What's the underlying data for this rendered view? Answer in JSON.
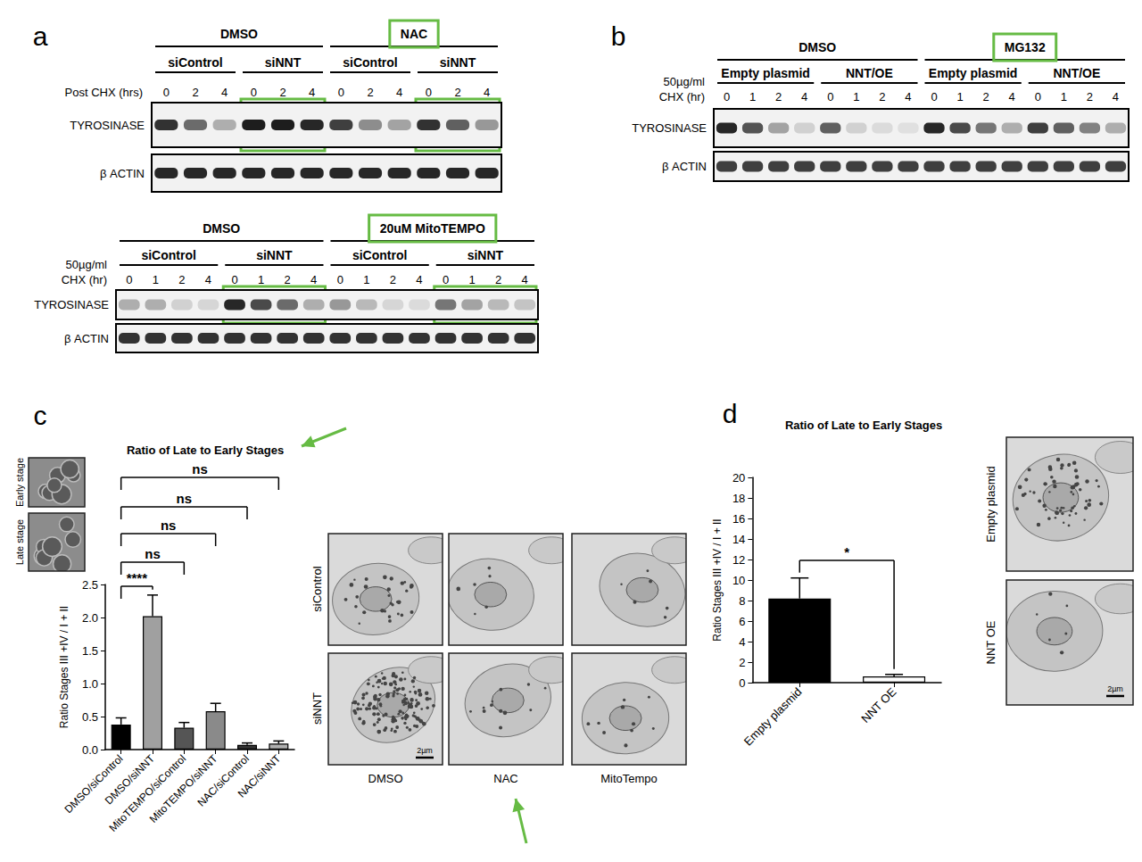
{
  "panels": [
    {
      "label": "a",
      "blots": [
        {
          "time_label": [
            "Post CHX (hrs)"
          ],
          "groups": [
            {
              "label": "DMSO",
              "highlight": false,
              "conditions": [
                {
                  "label": "siControl",
                  "highlight": false,
                  "times": [
                    0,
                    2,
                    4
                  ]
                },
                {
                  "label": "siNNT",
                  "highlight": true,
                  "times": [
                    0,
                    2,
                    4
                  ]
                }
              ]
            },
            {
              "label": "NAC",
              "highlight": true,
              "conditions": [
                {
                  "label": "siControl",
                  "highlight": false,
                  "times": [
                    0,
                    2,
                    4
                  ]
                },
                {
                  "label": "siNNT",
                  "highlight": true,
                  "times": [
                    0,
                    2,
                    4
                  ]
                }
              ]
            }
          ],
          "rows": [
            {
              "label": "TYROSINASE",
              "bands": [
                0.85,
                0.6,
                0.3,
                0.95,
                0.95,
                0.9,
                0.8,
                0.45,
                0.35,
                0.85,
                0.65,
                0.4
              ]
            },
            {
              "label": "β ACTIN",
              "bands": [
                0.9,
                0.9,
                0.9,
                0.9,
                0.9,
                0.9,
                0.9,
                0.9,
                0.9,
                0.9,
                0.9,
                0.9
              ]
            }
          ]
        },
        {
          "time_label": [
            "50µg/ml",
            "CHX (hr)"
          ],
          "groups": [
            {
              "label": "DMSO",
              "highlight": false,
              "conditions": [
                {
                  "label": "siControl",
                  "highlight": false,
                  "times": [
                    0,
                    1,
                    2,
                    4
                  ]
                },
                {
                  "label": "siNNT",
                  "highlight": true,
                  "times": [
                    0,
                    1,
                    2,
                    4
                  ]
                }
              ]
            },
            {
              "label": "20uM MitoTEMPO",
              "highlight": true,
              "conditions": [
                {
                  "label": "siControl",
                  "highlight": false,
                  "times": [
                    0,
                    1,
                    2,
                    4
                  ]
                },
                {
                  "label": "siNNT",
                  "highlight": true,
                  "times": [
                    0,
                    1,
                    2,
                    4
                  ]
                }
              ]
            }
          ],
          "rows": [
            {
              "label": "TYROSINASE",
              "bands": [
                0.3,
                0.3,
                0.15,
                0.12,
                0.9,
                0.75,
                0.6,
                0.3,
                0.4,
                0.25,
                0.12,
                0.1,
                0.55,
                0.35,
                0.25,
                0.2
              ]
            },
            {
              "label": "β ACTIN",
              "bands": [
                0.85,
                0.85,
                0.85,
                0.85,
                0.85,
                0.85,
                0.85,
                0.85,
                0.85,
                0.85,
                0.85,
                0.85,
                0.85,
                0.85,
                0.85,
                0.85
              ]
            }
          ]
        }
      ]
    },
    {
      "label": "b",
      "blots": [
        {
          "time_label": [
            "50µg/ml",
            "CHX (hr)"
          ],
          "groups": [
            {
              "label": "DMSO",
              "highlight": false,
              "conditions": [
                {
                  "label": "Empty plasmid",
                  "highlight": false,
                  "times": [
                    0,
                    1,
                    2,
                    4
                  ]
                },
                {
                  "label": "NNT/OE",
                  "highlight": false,
                  "times": [
                    0,
                    1,
                    2,
                    4
                  ]
                }
              ]
            },
            {
              "label": "MG132",
              "highlight": true,
              "conditions": [
                {
                  "label": "Empty plasmid",
                  "highlight": false,
                  "times": [
                    0,
                    1,
                    2,
                    4
                  ]
                },
                {
                  "label": "NNT/OE",
                  "highlight": false,
                  "times": [
                    0,
                    1,
                    2,
                    4
                  ]
                }
              ]
            }
          ],
          "rows": [
            {
              "label": "TYROSINASE",
              "bands": [
                0.9,
                0.7,
                0.35,
                0.15,
                0.65,
                0.15,
                0.1,
                0.08,
                0.9,
                0.75,
                0.55,
                0.3,
                0.8,
                0.65,
                0.5,
                0.3
              ]
            },
            {
              "label": "β ACTIN",
              "bands": [
                0.8,
                0.8,
                0.8,
                0.8,
                0.8,
                0.8,
                0.8,
                0.8,
                0.8,
                0.8,
                0.8,
                0.8,
                0.8,
                0.8,
                0.8,
                0.8
              ]
            }
          ]
        }
      ]
    },
    {
      "label": "c",
      "insets": [
        "Early stage",
        "Late stage"
      ],
      "micrographs": {
        "rows": [
          "siControl",
          "siNNT"
        ],
        "columns": [
          "DMSO",
          "NAC",
          "MitoTempo"
        ],
        "scale_bar": "2µm"
      }
    },
    {
      "label": "d",
      "micrographs": {
        "rows": [
          "Empty plasmid",
          "NNT OE"
        ],
        "scale_bar": "2µm"
      }
    }
  ],
  "chart_data": [
    {
      "type": "bar",
      "title": "Ratio of Late to Early Stages",
      "ylabel": "Ratio Stages III +IV / I + II",
      "categories": [
        "DMSO/siControl",
        "DMSO/siNNT",
        "MitoTEMPO/siControl",
        "MitoTEMPO/siNNT",
        "NAC/siControl",
        "NAC/siNNT"
      ],
      "values": [
        0.38,
        2.02,
        0.33,
        0.58,
        0.07,
        0.09
      ],
      "errors": [
        0.1,
        0.32,
        0.08,
        0.12,
        0.03,
        0.04
      ],
      "colors": [
        "#000000",
        "#a0a0a0",
        "#555555",
        "#8a8a8a",
        "#333333",
        "#b0b0b0"
      ],
      "ylim": [
        0,
        2.5
      ],
      "yticks": [
        {
          "value": 0,
          "label": "0.0"
        },
        0.5,
        {
          "value": 1,
          "label": "1.0"
        },
        1.5,
        {
          "value": 2,
          "label": "2.0"
        },
        2.5
      ],
      "grid": false,
      "significance": [
        {
          "from": "DMSO/siControl",
          "to": "DMSO/siNNT",
          "label": "****"
        },
        {
          "from": "DMSO/siControl",
          "to": "MitoTEMPO/siControl",
          "label": "ns"
        },
        {
          "from": "DMSO/siControl",
          "to": "MitoTEMPO/siNNT",
          "label": "ns"
        },
        {
          "from": "DMSO/siControl",
          "to": "NAC/siControl",
          "label": "ns"
        },
        {
          "from": "DMSO/siControl",
          "to": "NAC/siNNT",
          "label": "ns"
        }
      ]
    },
    {
      "type": "bar",
      "title": "Ratio of Late to Early Stages",
      "ylabel": "Ratio Stages III +IV / I + II",
      "categories": [
        "Empty plasmid",
        "NNT OE"
      ],
      "values": [
        8.2,
        0.6
      ],
      "errors": [
        2.0,
        0.2
      ],
      "colors": [
        "#000000",
        "#ffffff"
      ],
      "ylim": [
        0,
        20
      ],
      "yticks": [
        0,
        2,
        4,
        6,
        8,
        10,
        12,
        14,
        16,
        18,
        20
      ],
      "grid": false,
      "significance": [
        {
          "from": "Empty plasmid",
          "to": "NNT OE",
          "label": "*"
        }
      ]
    }
  ]
}
